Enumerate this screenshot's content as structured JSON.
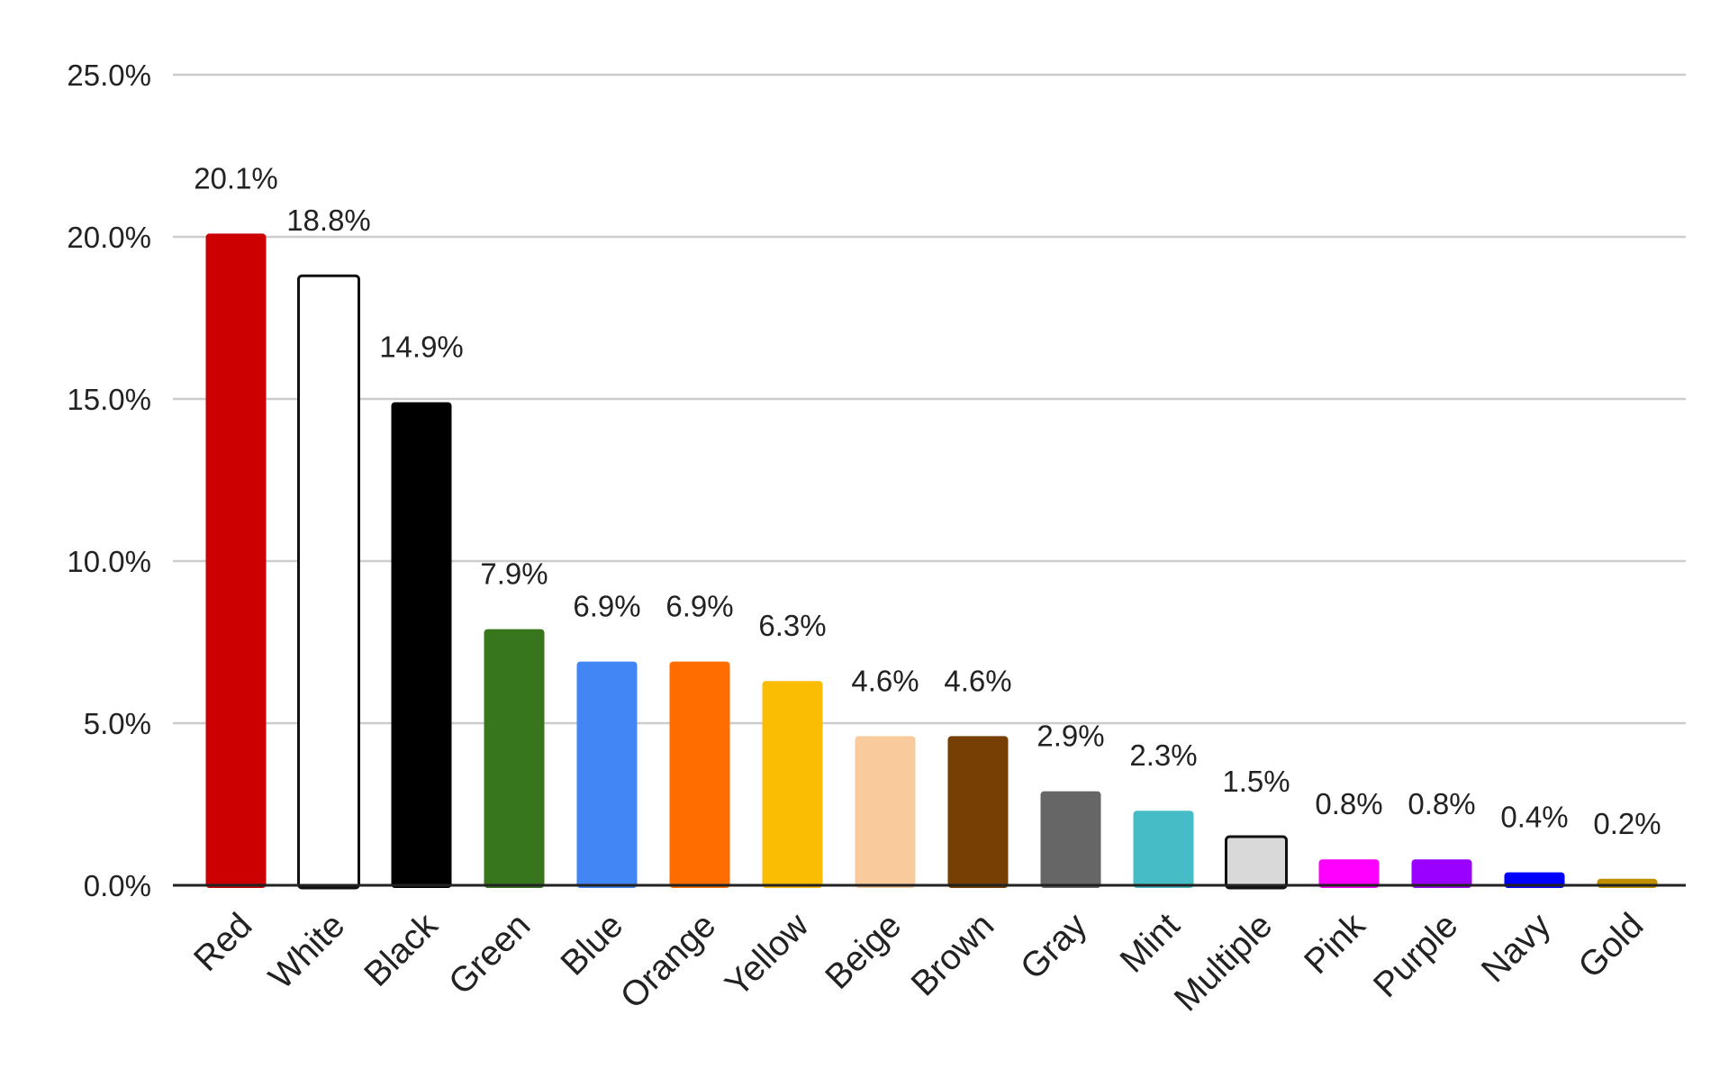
{
  "chart_data": {
    "type": "bar",
    "categories": [
      "Red",
      "White",
      "Black",
      "Green",
      "Blue",
      "Orange",
      "Yellow",
      "Beige",
      "Brown",
      "Gray",
      "Mint",
      "Multiple",
      "Pink",
      "Purple",
      "Navy",
      "Gold"
    ],
    "values": [
      20.1,
      18.8,
      14.9,
      7.9,
      6.9,
      6.9,
      6.3,
      4.6,
      4.6,
      2.9,
      2.3,
      1.5,
      0.8,
      0.8,
      0.4,
      0.2
    ],
    "data_labels": [
      "20.1%",
      "18.8%",
      "14.9%",
      "7.9%",
      "6.9%",
      "6.9%",
      "6.3%",
      "4.6%",
      "4.6%",
      "2.9%",
      "2.3%",
      "1.5%",
      "0.8%",
      "0.8%",
      "0.4%",
      "0.2%"
    ],
    "colors": [
      "#cc0000",
      "#ffffff",
      "#000000",
      "#38761d",
      "#4285f4",
      "#ff6d01",
      "#fbbc04",
      "#f9cb9c",
      "#783f04",
      "#666666",
      "#46bdc6",
      "#d9d9d9",
      "#ff00ff",
      "#9900ff",
      "#0000ff",
      "#bf9000"
    ],
    "outlined": [
      "White",
      "Multiple"
    ],
    "ylim": [
      0,
      25
    ],
    "yticks": [
      0,
      5,
      10,
      15,
      20,
      25
    ],
    "ytick_labels": [
      "0.0%",
      "5.0%",
      "10.0%",
      "15.0%",
      "20.0%",
      "25.0%"
    ],
    "grid": true,
    "legend": "none",
    "title": "",
    "xlabel": "",
    "ylabel": ""
  }
}
